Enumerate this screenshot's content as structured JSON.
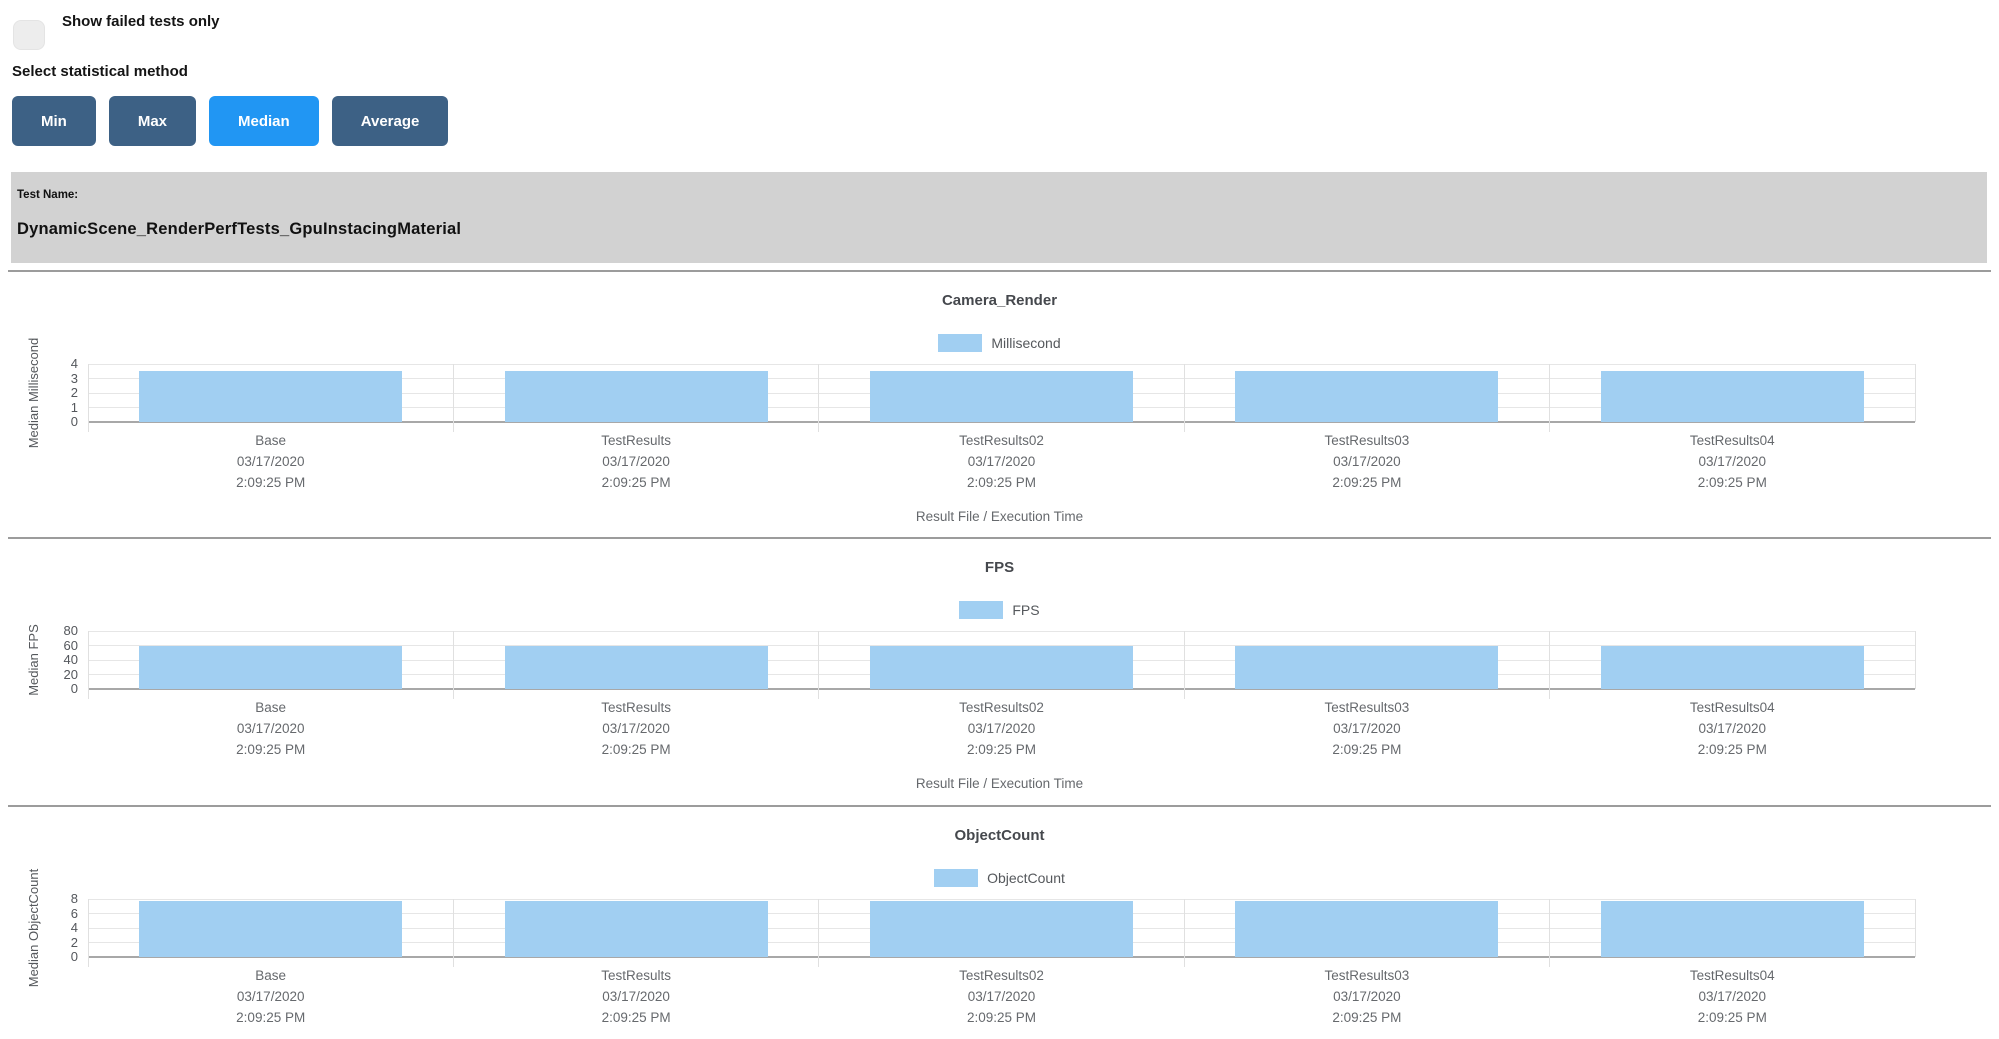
{
  "controls": {
    "show_failed_label": "Show failed tests only",
    "stat_method_label": "Select statistical method",
    "buttons": [
      {
        "label": "Min",
        "active": false
      },
      {
        "label": "Max",
        "active": false
      },
      {
        "label": "Median",
        "active": true
      },
      {
        "label": "Average",
        "active": false
      }
    ]
  },
  "test_header": {
    "label": "Test Name:",
    "name": "DynamicScene_RenderPerfTests_GpuInstacingMaterial"
  },
  "colors": {
    "button": "#3d6185",
    "button_active": "#2196f3",
    "bar": "#a1cff2",
    "panel_bg": "#d2d2d2"
  },
  "chart_data": [
    {
      "type": "bar",
      "title": "Camera_Render",
      "legend": "Millisecond",
      "ylabel": "Median Millisecond",
      "xlabel": "Result File / Execution Time",
      "ylim": [
        0,
        4
      ],
      "yticks": [
        0,
        1,
        2,
        3,
        4
      ],
      "grid": true,
      "legend_position": "top",
      "categories": [
        {
          "name": "Base",
          "date": "03/17/2020",
          "time": "2:09:25 PM"
        },
        {
          "name": "TestResults",
          "date": "03/17/2020",
          "time": "2:09:25 PM"
        },
        {
          "name": "TestResults02",
          "date": "03/17/2020",
          "time": "2:09:25 PM"
        },
        {
          "name": "TestResults03",
          "date": "03/17/2020",
          "time": "2:09:25 PM"
        },
        {
          "name": "TestResults04",
          "date": "03/17/2020",
          "time": "2:09:25 PM"
        }
      ],
      "values": [
        3.5,
        3.5,
        3.5,
        3.5,
        3.5
      ]
    },
    {
      "type": "bar",
      "title": "FPS",
      "legend": "FPS",
      "ylabel": "Median FPS",
      "xlabel": "Result File / Execution Time",
      "ylim": [
        0,
        80
      ],
      "yticks": [
        0,
        20,
        40,
        60,
        80
      ],
      "grid": true,
      "legend_position": "top",
      "categories": [
        {
          "name": "Base",
          "date": "03/17/2020",
          "time": "2:09:25 PM"
        },
        {
          "name": "TestResults",
          "date": "03/17/2020",
          "time": "2:09:25 PM"
        },
        {
          "name": "TestResults02",
          "date": "03/17/2020",
          "time": "2:09:25 PM"
        },
        {
          "name": "TestResults03",
          "date": "03/17/2020",
          "time": "2:09:25 PM"
        },
        {
          "name": "TestResults04",
          "date": "03/17/2020",
          "time": "2:09:25 PM"
        }
      ],
      "values": [
        60,
        60,
        60,
        60,
        60
      ]
    },
    {
      "type": "bar",
      "title": "ObjectCount",
      "legend": "ObjectCount",
      "ylabel": "Median ObjectCount",
      "xlabel": "",
      "ylim": [
        0,
        8
      ],
      "yticks": [
        0,
        2,
        4,
        6,
        8
      ],
      "grid": true,
      "legend_position": "top",
      "categories": [
        {
          "name": "Base",
          "date": "03/17/2020",
          "time": "2:09:25 PM"
        },
        {
          "name": "TestResults",
          "date": "03/17/2020",
          "time": "2:09:25 PM"
        },
        {
          "name": "TestResults02",
          "date": "03/17/2020",
          "time": "2:09:25 PM"
        },
        {
          "name": "TestResults03",
          "date": "03/17/2020",
          "time": "2:09:25 PM"
        },
        {
          "name": "TestResults04",
          "date": "03/17/2020",
          "time": "2:09:25 PM"
        }
      ],
      "values": [
        7.7,
        7.7,
        7.7,
        7.7,
        7.7
      ]
    }
  ]
}
